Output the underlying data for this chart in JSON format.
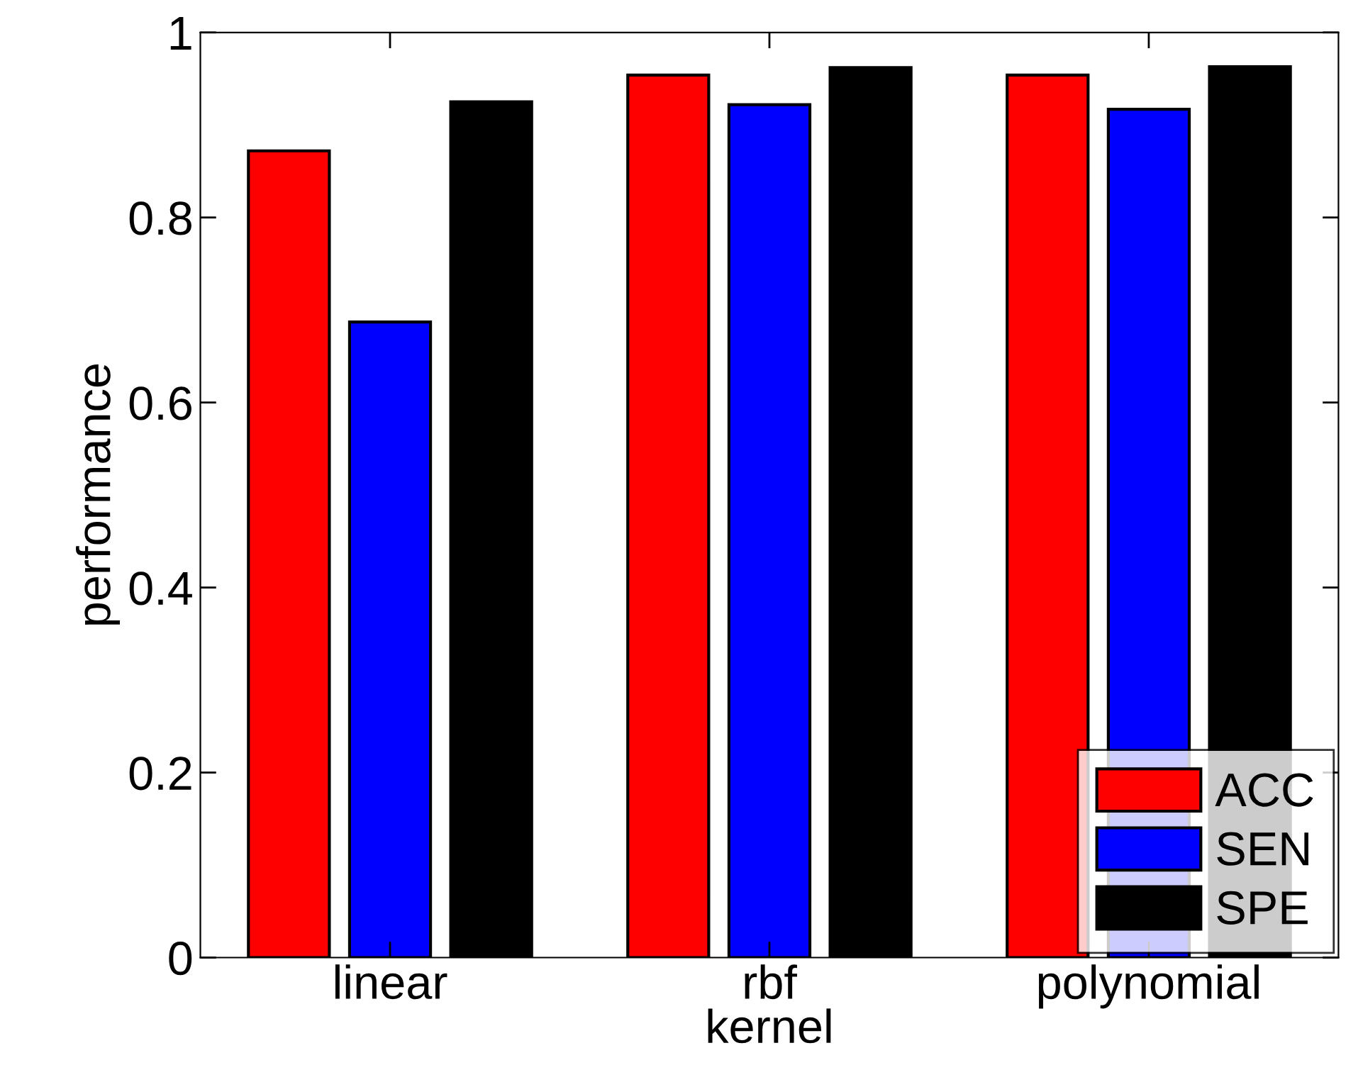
{
  "chart_data": {
    "type": "bar",
    "xlabel": "kernel",
    "ylabel": "performance",
    "categories": [
      "linear",
      "rbf",
      "polynomial"
    ],
    "series": [
      {
        "name": "ACC",
        "color": "#ff0000",
        "values": [
          0.872,
          0.954,
          0.954
        ]
      },
      {
        "name": "SEN",
        "color": "#0000ff",
        "values": [
          0.687,
          0.922,
          0.917
        ]
      },
      {
        "name": "SPE",
        "color": "#000000",
        "values": [
          0.925,
          0.962,
          0.963
        ]
      }
    ],
    "ylim": [
      0,
      1
    ],
    "yticks": [
      0,
      0.2,
      0.4,
      0.6,
      0.8,
      1
    ],
    "grid": false,
    "legend": "bottom right"
  }
}
